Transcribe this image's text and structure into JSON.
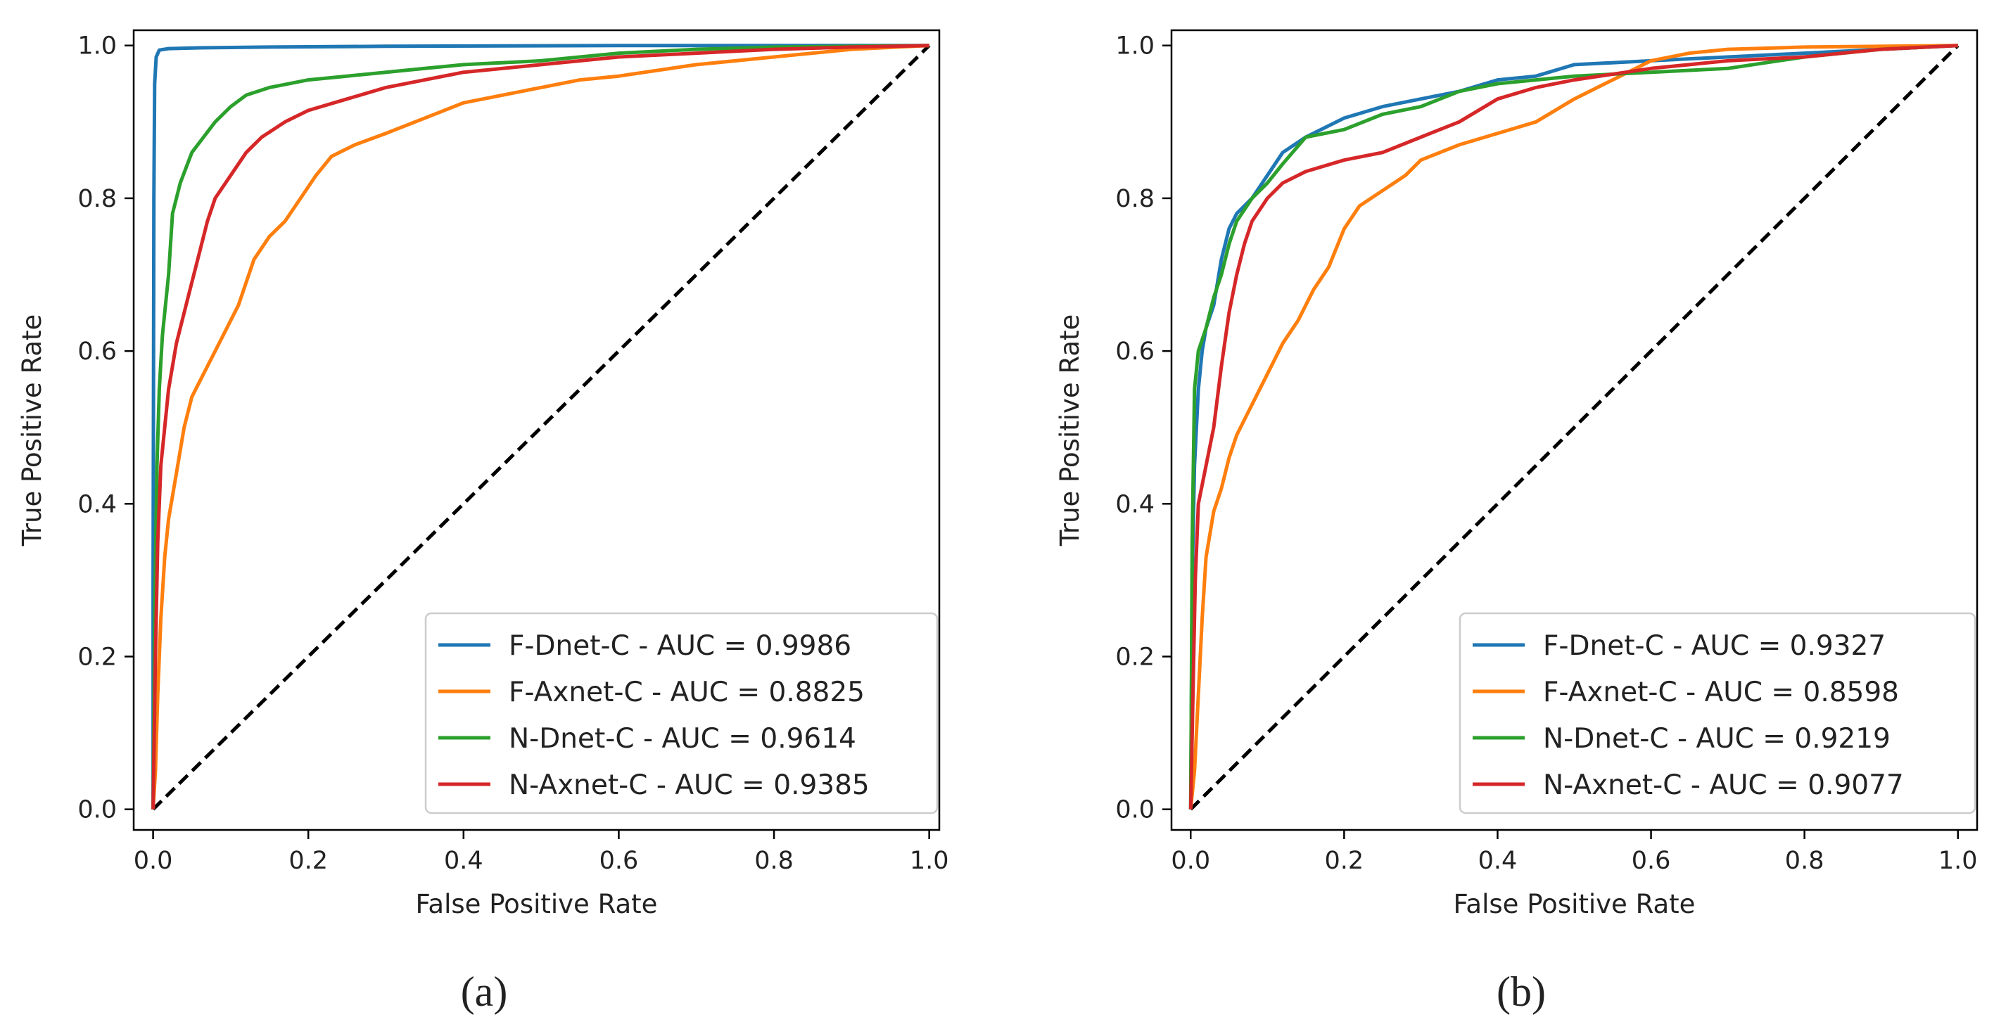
{
  "chart_data": [
    {
      "type": "line",
      "panel_label": "(a)",
      "xlabel": "False Positive Rate",
      "ylabel": "True Positive Rate",
      "xlim": [
        -0.025,
        1.013
      ],
      "ylim": [
        -0.027,
        1.02
      ],
      "xticks": [
        "0.0",
        "0.2",
        "0.4",
        "0.6",
        "0.8",
        "1.0"
      ],
      "yticks": [
        "0.0",
        "0.2",
        "0.4",
        "0.6",
        "0.8",
        "1.0"
      ],
      "legend_position": "lower-right",
      "chance_line": {
        "style": "dashed",
        "color": "#000000",
        "points": [
          [
            0,
            0
          ],
          [
            1,
            1
          ]
        ]
      },
      "series": [
        {
          "name": "F-Dnet-C - AUC = 0.9986",
          "color": "#1f77b4",
          "points": [
            [
              0,
              0
            ],
            [
              0,
              0.3
            ],
            [
              0.001,
              0.8
            ],
            [
              0.002,
              0.95
            ],
            [
              0.004,
              0.985
            ],
            [
              0.008,
              0.994
            ],
            [
              0.02,
              0.996
            ],
            [
              0.06,
              0.997
            ],
            [
              0.15,
              0.998
            ],
            [
              0.3,
              0.999
            ],
            [
              0.6,
              1.0
            ],
            [
              1,
              1
            ]
          ]
        },
        {
          "name": "F-Axnet-C - AUC = 0.8825",
          "color": "#ff7f0e",
          "points": [
            [
              0,
              0
            ],
            [
              0.003,
              0.05
            ],
            [
              0.006,
              0.15
            ],
            [
              0.01,
              0.25
            ],
            [
              0.015,
              0.33
            ],
            [
              0.02,
              0.38
            ],
            [
              0.03,
              0.44
            ],
            [
              0.04,
              0.5
            ],
            [
              0.05,
              0.54
            ],
            [
              0.07,
              0.58
            ],
            [
              0.09,
              0.62
            ],
            [
              0.11,
              0.66
            ],
            [
              0.13,
              0.72
            ],
            [
              0.15,
              0.75
            ],
            [
              0.17,
              0.77
            ],
            [
              0.19,
              0.8
            ],
            [
              0.21,
              0.83
            ],
            [
              0.23,
              0.855
            ],
            [
              0.26,
              0.87
            ],
            [
              0.3,
              0.885
            ],
            [
              0.35,
              0.905
            ],
            [
              0.4,
              0.925
            ],
            [
              0.45,
              0.935
            ],
            [
              0.5,
              0.945
            ],
            [
              0.55,
              0.955
            ],
            [
              0.6,
              0.96
            ],
            [
              0.7,
              0.975
            ],
            [
              0.8,
              0.985
            ],
            [
              0.9,
              0.995
            ],
            [
              1,
              1
            ]
          ]
        },
        {
          "name": "N-Dnet-C - AUC = 0.9614",
          "color": "#2ca02c",
          "points": [
            [
              0,
              0
            ],
            [
              0.002,
              0.25
            ],
            [
              0.005,
              0.45
            ],
            [
              0.008,
              0.55
            ],
            [
              0.012,
              0.62
            ],
            [
              0.02,
              0.7
            ],
            [
              0.025,
              0.78
            ],
            [
              0.035,
              0.82
            ],
            [
              0.05,
              0.86
            ],
            [
              0.065,
              0.88
            ],
            [
              0.08,
              0.9
            ],
            [
              0.1,
              0.92
            ],
            [
              0.12,
              0.935
            ],
            [
              0.15,
              0.945
            ],
            [
              0.2,
              0.955
            ],
            [
              0.25,
              0.96
            ],
            [
              0.3,
              0.965
            ],
            [
              0.35,
              0.97
            ],
            [
              0.4,
              0.975
            ],
            [
              0.5,
              0.98
            ],
            [
              0.6,
              0.99
            ],
            [
              0.7,
              0.995
            ],
            [
              0.8,
              0.998
            ],
            [
              1,
              1
            ]
          ]
        },
        {
          "name": "N-Axnet-C - AUC = 0.9385",
          "color": "#d62728",
          "points": [
            [
              0,
              0
            ],
            [
              0.003,
              0.2
            ],
            [
              0.006,
              0.35
            ],
            [
              0.01,
              0.45
            ],
            [
              0.02,
              0.55
            ],
            [
              0.03,
              0.61
            ],
            [
              0.04,
              0.65
            ],
            [
              0.05,
              0.69
            ],
            [
              0.06,
              0.73
            ],
            [
              0.07,
              0.77
            ],
            [
              0.08,
              0.8
            ],
            [
              0.1,
              0.83
            ],
            [
              0.12,
              0.86
            ],
            [
              0.14,
              0.88
            ],
            [
              0.17,
              0.9
            ],
            [
              0.2,
              0.915
            ],
            [
              0.25,
              0.93
            ],
            [
              0.3,
              0.945
            ],
            [
              0.35,
              0.955
            ],
            [
              0.4,
              0.965
            ],
            [
              0.5,
              0.975
            ],
            [
              0.6,
              0.985
            ],
            [
              0.7,
              0.99
            ],
            [
              0.8,
              0.995
            ],
            [
              0.9,
              0.998
            ],
            [
              1,
              1
            ]
          ]
        }
      ]
    },
    {
      "type": "line",
      "panel_label": "(b)",
      "xlabel": "False Positive Rate",
      "ylabel": "True Positive Rate",
      "xlim": [
        -0.025,
        1.025
      ],
      "ylim": [
        -0.027,
        1.02
      ],
      "xticks": [
        "0.0",
        "0.2",
        "0.4",
        "0.6",
        "0.8",
        "1.0"
      ],
      "yticks": [
        "0.0",
        "0.2",
        "0.4",
        "0.6",
        "0.8",
        "1.0"
      ],
      "legend_position": "lower-right",
      "chance_line": {
        "style": "dashed",
        "color": "#000000",
        "points": [
          [
            0,
            0
          ],
          [
            1,
            1
          ]
        ]
      },
      "series": [
        {
          "name": "F-Dnet-C - AUC = 0.9327",
          "color": "#1f77b4",
          "points": [
            [
              0,
              0
            ],
            [
              0.002,
              0.3
            ],
            [
              0.005,
              0.45
            ],
            [
              0.01,
              0.55
            ],
            [
              0.015,
              0.6
            ],
            [
              0.02,
              0.63
            ],
            [
              0.03,
              0.66
            ],
            [
              0.04,
              0.72
            ],
            [
              0.05,
              0.76
            ],
            [
              0.06,
              0.78
            ],
            [
              0.08,
              0.8
            ],
            [
              0.1,
              0.83
            ],
            [
              0.12,
              0.86
            ],
            [
              0.15,
              0.88
            ],
            [
              0.2,
              0.905
            ],
            [
              0.25,
              0.92
            ],
            [
              0.3,
              0.93
            ],
            [
              0.35,
              0.94
            ],
            [
              0.4,
              0.955
            ],
            [
              0.45,
              0.96
            ],
            [
              0.5,
              0.975
            ],
            [
              0.6,
              0.98
            ],
            [
              0.7,
              0.985
            ],
            [
              0.8,
              0.99
            ],
            [
              0.9,
              0.995
            ],
            [
              1,
              1
            ]
          ]
        },
        {
          "name": "F-Axnet-C - AUC = 0.8598",
          "color": "#ff7f0e",
          "points": [
            [
              0,
              0
            ],
            [
              0.005,
              0.05
            ],
            [
              0.01,
              0.15
            ],
            [
              0.015,
              0.25
            ],
            [
              0.02,
              0.33
            ],
            [
              0.03,
              0.39
            ],
            [
              0.04,
              0.42
            ],
            [
              0.05,
              0.46
            ],
            [
              0.06,
              0.49
            ],
            [
              0.08,
              0.53
            ],
            [
              0.1,
              0.57
            ],
            [
              0.12,
              0.61
            ],
            [
              0.14,
              0.64
            ],
            [
              0.16,
              0.68
            ],
            [
              0.18,
              0.71
            ],
            [
              0.2,
              0.76
            ],
            [
              0.22,
              0.79
            ],
            [
              0.25,
              0.81
            ],
            [
              0.28,
              0.83
            ],
            [
              0.3,
              0.85
            ],
            [
              0.35,
              0.87
            ],
            [
              0.4,
              0.885
            ],
            [
              0.45,
              0.9
            ],
            [
              0.5,
              0.93
            ],
            [
              0.55,
              0.955
            ],
            [
              0.6,
              0.98
            ],
            [
              0.65,
              0.99
            ],
            [
              0.7,
              0.995
            ],
            [
              0.8,
              0.998
            ],
            [
              1,
              1
            ]
          ]
        },
        {
          "name": "N-Dnet-C - AUC = 0.9219",
          "color": "#2ca02c",
          "points": [
            [
              0,
              0
            ],
            [
              0.002,
              0.35
            ],
            [
              0.005,
              0.55
            ],
            [
              0.01,
              0.6
            ],
            [
              0.02,
              0.63
            ],
            [
              0.03,
              0.67
            ],
            [
              0.04,
              0.7
            ],
            [
              0.05,
              0.74
            ],
            [
              0.06,
              0.77
            ],
            [
              0.08,
              0.8
            ],
            [
              0.1,
              0.82
            ],
            [
              0.12,
              0.845
            ],
            [
              0.15,
              0.88
            ],
            [
              0.2,
              0.89
            ],
            [
              0.25,
              0.91
            ],
            [
              0.3,
              0.92
            ],
            [
              0.35,
              0.94
            ],
            [
              0.4,
              0.95
            ],
            [
              0.45,
              0.955
            ],
            [
              0.5,
              0.96
            ],
            [
              0.6,
              0.965
            ],
            [
              0.7,
              0.97
            ],
            [
              0.8,
              0.985
            ],
            [
              0.9,
              0.995
            ],
            [
              1,
              1
            ]
          ]
        },
        {
          "name": "N-Axnet-C - AUC = 0.9077",
          "color": "#d62728",
          "points": [
            [
              0,
              0
            ],
            [
              0.003,
              0.15
            ],
            [
              0.006,
              0.3
            ],
            [
              0.01,
              0.4
            ],
            [
              0.02,
              0.45
            ],
            [
              0.03,
              0.5
            ],
            [
              0.04,
              0.58
            ],
            [
              0.05,
              0.65
            ],
            [
              0.06,
              0.7
            ],
            [
              0.07,
              0.74
            ],
            [
              0.08,
              0.77
            ],
            [
              0.1,
              0.8
            ],
            [
              0.12,
              0.82
            ],
            [
              0.15,
              0.835
            ],
            [
              0.2,
              0.85
            ],
            [
              0.25,
              0.86
            ],
            [
              0.3,
              0.88
            ],
            [
              0.35,
              0.9
            ],
            [
              0.4,
              0.93
            ],
            [
              0.45,
              0.945
            ],
            [
              0.5,
              0.955
            ],
            [
              0.6,
              0.97
            ],
            [
              0.7,
              0.98
            ],
            [
              0.8,
              0.985
            ],
            [
              0.9,
              0.995
            ],
            [
              1,
              1
            ]
          ]
        }
      ]
    }
  ]
}
